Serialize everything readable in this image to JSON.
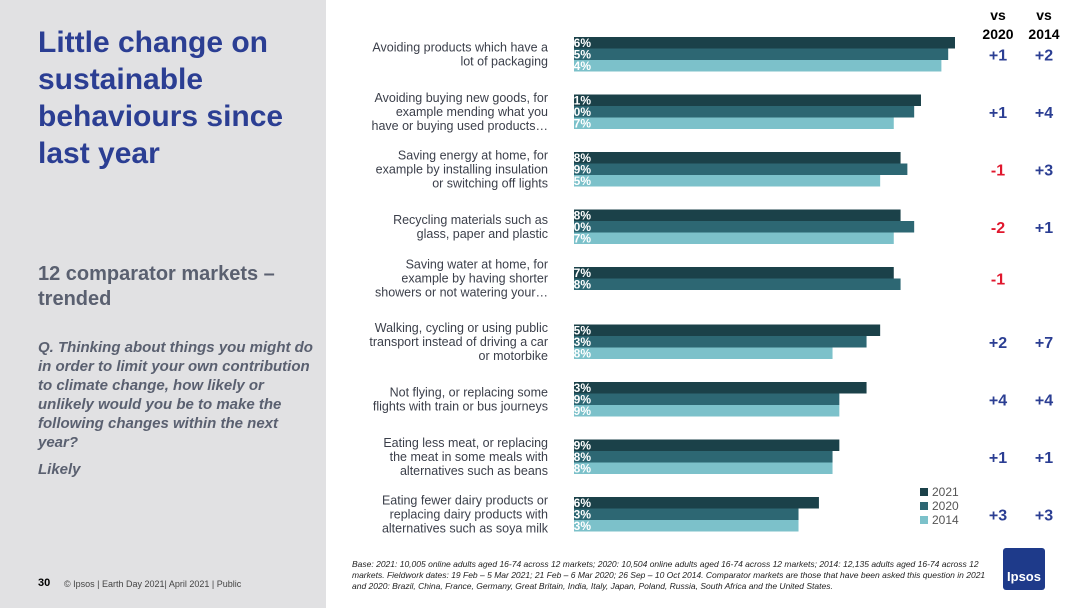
{
  "left": {
    "title": "Little change on sustainable behaviours since last year",
    "subtitle": "12 comparator markets – trended",
    "question": "Q. Thinking about things you might do in order to limit your own contribution to climate change, how likely or unlikely would you be to make the following changes within the next year?",
    "answer": "Likely",
    "page_number": "30",
    "footer": "© Ipsos | Earth Day 2021| April 2021 | Public"
  },
  "headers": {
    "vs2020": "vs 2020",
    "vs2014": "vs 2014"
  },
  "base_note": "Base: 2021: 10,005 online adults aged 16-74 across 12 markets; 2020: 10,504 online adults aged 16-74 across 12 markets; 2014: 12,135 adults aged 16-74 across 12 markets.  Fieldwork dates: 19 Feb – 5 Mar 2021; 21 Feb – 6 Mar 2020; 26 Sep – 10  Oct 2014. Comparator markets are those that have been asked this question in 2021 and 2020: Brazil, China, France, Germany, Great Britain, India, Italy, Japan, Poland, Russia, South Africa and the United States.",
  "logo_text": "Ipsos",
  "colors": {
    "s2021": "#1b4149",
    "s2020": "#2d6773",
    "s2014": "#7cc1ca",
    "positive": "#2b3e93",
    "negative": "#e0172d"
  },
  "chart_data": {
    "type": "bar",
    "orientation": "horizontal",
    "xlim": [
      0,
      60
    ],
    "categories": [
      [
        "Avoiding products which have a",
        "lot of packaging"
      ],
      [
        "Avoiding buying new goods, for",
        "example mending what you",
        "have or buying used products…"
      ],
      [
        "Saving energy at home, for",
        "example by installing insulation",
        "or switching off lights"
      ],
      [
        "Recycling materials such as",
        "glass, paper and plastic"
      ],
      [
        "Saving water at home, for",
        "example by having shorter",
        "showers or not watering your…"
      ],
      [
        "Walking, cycling or using public",
        "transport instead of driving a car",
        "or motorbike"
      ],
      [
        "Not flying, or replacing some",
        "flights with train or bus journeys"
      ],
      [
        "Eating less meat, or replacing",
        "the meat in some meals with",
        "alternatives such as beans"
      ],
      [
        "Eating fewer dairy products or",
        "replacing dairy products with",
        "alternatives such as soya milk"
      ]
    ],
    "series": [
      {
        "name": "2021",
        "values": [
          56,
          51,
          48,
          48,
          47,
          45,
          43,
          39,
          36
        ]
      },
      {
        "name": "2020",
        "values": [
          55,
          50,
          49,
          50,
          48,
          43,
          39,
          38,
          33
        ]
      },
      {
        "name": "2014",
        "values": [
          54,
          47,
          45,
          47,
          null,
          38,
          39,
          38,
          33
        ]
      }
    ],
    "diff_vs_2020": [
      "+1",
      "+1",
      "-1",
      "-2",
      "-1",
      "+2",
      "+4",
      "+1",
      "+3"
    ],
    "diff_vs_2014": [
      "+2",
      "+4",
      "+3",
      "+1",
      "",
      "+7",
      "+4",
      "+1",
      "+3"
    ],
    "legend": [
      "2021",
      "2020",
      "2014"
    ]
  }
}
